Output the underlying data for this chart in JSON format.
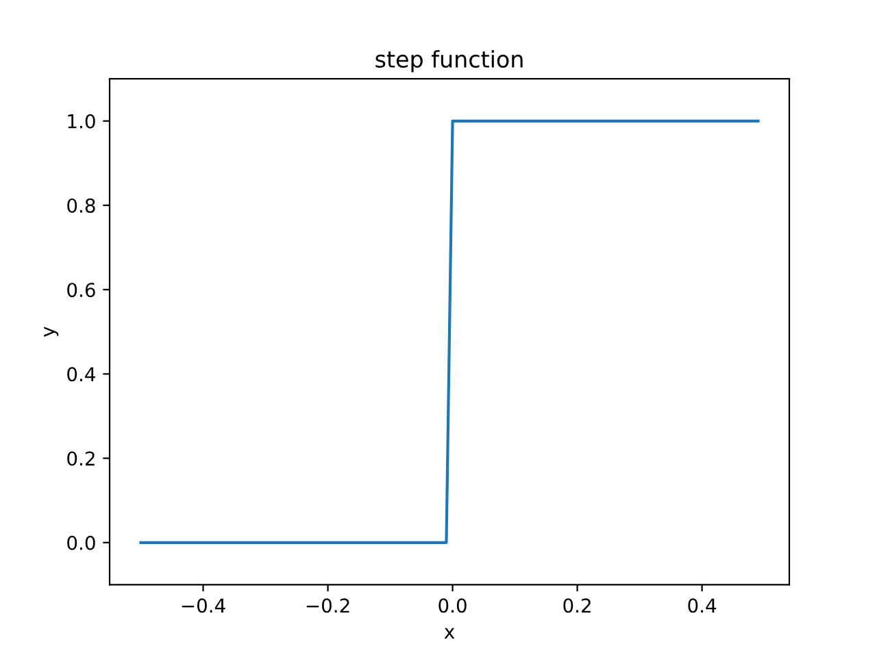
{
  "chart_data": {
    "type": "line",
    "title": "step function",
    "xlabel": "x",
    "ylabel": "y",
    "series": [
      {
        "color": "#1f77b4",
        "x": [
          -0.5,
          -0.01,
          0.0,
          0.49
        ],
        "values": [
          0,
          0,
          1,
          1
        ]
      }
    ],
    "xlim": [
      -0.55,
      0.54
    ],
    "xticks": [
      {
        "value": -0.4,
        "label": "−0.4"
      },
      {
        "value": -0.2,
        "label": "−0.2"
      },
      {
        "value": 0,
        "label": "0.0"
      },
      0.2,
      0.4
    ],
    "ylim": [
      -0.1,
      1.1
    ],
    "yticks": [
      {
        "value": 0,
        "label": "0.0"
      },
      0.2,
      0.4,
      0.6,
      0.8,
      {
        "value": 1,
        "label": "1.0"
      }
    ],
    "grid": false,
    "legend": false,
    "marker": "none",
    "line_style": "solid"
  }
}
